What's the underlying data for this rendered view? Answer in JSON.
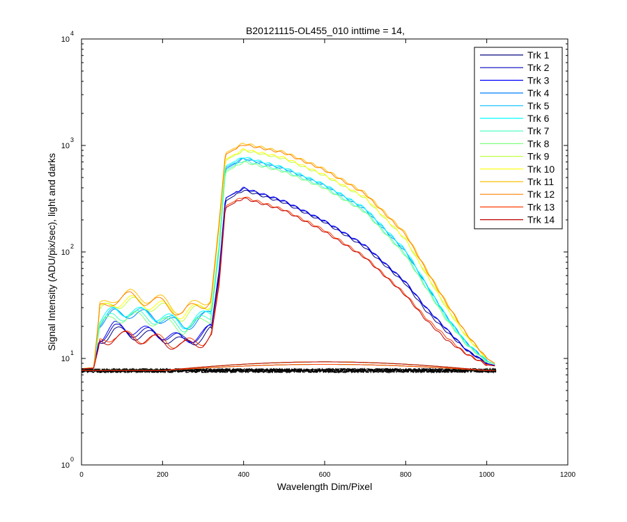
{
  "chart_data": {
    "type": "line",
    "title": "B20121115-OL455_010 inttime = 14,",
    "xlabel": "Wavelength Dim/Pixel",
    "ylabel": "Signal Intensity (ADU/pix/sec), light and darks",
    "xlim": [
      0,
      1200
    ],
    "ylim": [
      1,
      10000
    ],
    "yscale": "log",
    "xticks": [
      0,
      200,
      400,
      600,
      800,
      1000,
      1200
    ],
    "yticks": [
      {
        "value": 1,
        "base": "10",
        "exp": "0"
      },
      {
        "value": 10,
        "base": "10",
        "exp": "1"
      },
      {
        "value": 100,
        "base": "10",
        "exp": "2"
      },
      {
        "value": 1000,
        "base": "10",
        "exp": "3"
      },
      {
        "value": 10000,
        "base": "10",
        "exp": "4"
      }
    ],
    "grid": false,
    "legend_position": "top-right",
    "dark_level": 7.7,
    "series": [
      {
        "name": "Trk 1",
        "color": "#00007f",
        "points": [
          [
            0,
            8.0
          ],
          [
            30,
            8.1
          ],
          [
            45,
            15
          ],
          [
            80,
            18
          ],
          [
            120,
            17
          ],
          [
            200,
            16
          ],
          [
            250,
            14
          ],
          [
            300,
            16
          ],
          [
            320,
            18
          ],
          [
            340,
            60
          ],
          [
            355,
            300
          ],
          [
            400,
            380
          ],
          [
            500,
            290
          ],
          [
            600,
            190
          ],
          [
            700,
            110
          ],
          [
            800,
            50
          ],
          [
            850,
            28
          ],
          [
            900,
            18
          ],
          [
            950,
            12
          ],
          [
            1000,
            9
          ],
          [
            1020,
            8.6
          ]
        ]
      },
      {
        "name": "Trk 2",
        "color": "#0000bf",
        "points": [
          [
            0,
            8.0
          ],
          [
            30,
            8.1
          ],
          [
            45,
            16
          ],
          [
            80,
            19
          ],
          [
            120,
            18
          ],
          [
            200,
            17
          ],
          [
            250,
            15
          ],
          [
            300,
            17
          ],
          [
            320,
            19
          ],
          [
            340,
            65
          ],
          [
            355,
            320
          ],
          [
            400,
            395
          ],
          [
            500,
            300
          ],
          [
            600,
            195
          ],
          [
            700,
            115
          ],
          [
            800,
            52
          ],
          [
            850,
            30
          ],
          [
            900,
            19
          ],
          [
            950,
            12
          ],
          [
            1000,
            9
          ],
          [
            1020,
            8.6
          ]
        ]
      },
      {
        "name": "Trk 3",
        "color": "#0000ff",
        "points": [
          [
            0,
            8.0
          ],
          [
            30,
            8.1
          ],
          [
            45,
            16
          ],
          [
            80,
            20
          ],
          [
            120,
            19
          ],
          [
            200,
            17
          ],
          [
            250,
            15
          ],
          [
            300,
            17
          ],
          [
            320,
            19
          ],
          [
            340,
            70
          ],
          [
            355,
            320
          ],
          [
            400,
            400
          ],
          [
            500,
            300
          ],
          [
            600,
            195
          ],
          [
            700,
            115
          ],
          [
            800,
            52
          ],
          [
            850,
            30
          ],
          [
            900,
            19
          ],
          [
            950,
            12
          ],
          [
            1000,
            9
          ],
          [
            1020,
            8.6
          ]
        ]
      },
      {
        "name": "Trk 4",
        "color": "#007fff",
        "points": [
          [
            0,
            8.0
          ],
          [
            30,
            8.2
          ],
          [
            45,
            22
          ],
          [
            80,
            26
          ],
          [
            120,
            27
          ],
          [
            200,
            24
          ],
          [
            250,
            20
          ],
          [
            300,
            24
          ],
          [
            320,
            26
          ],
          [
            340,
            110
          ],
          [
            355,
            600
          ],
          [
            400,
            750
          ],
          [
            500,
            600
          ],
          [
            600,
            420
          ],
          [
            700,
            250
          ],
          [
            800,
            100
          ],
          [
            850,
            50
          ],
          [
            900,
            25
          ],
          [
            950,
            14
          ],
          [
            1000,
            9.5
          ],
          [
            1020,
            8.8
          ]
        ]
      },
      {
        "name": "Trk 5",
        "color": "#00bfff",
        "points": [
          [
            0,
            8.0
          ],
          [
            30,
            8.2
          ],
          [
            45,
            22
          ],
          [
            80,
            27
          ],
          [
            120,
            28
          ],
          [
            200,
            24
          ],
          [
            250,
            21
          ],
          [
            300,
            24
          ],
          [
            320,
            27
          ],
          [
            340,
            115
          ],
          [
            355,
            620
          ],
          [
            400,
            760
          ],
          [
            500,
            610
          ],
          [
            600,
            425
          ],
          [
            700,
            255
          ],
          [
            800,
            102
          ],
          [
            850,
            50
          ],
          [
            900,
            25
          ],
          [
            950,
            14
          ],
          [
            1000,
            9.5
          ],
          [
            1020,
            8.8
          ]
        ]
      },
      {
        "name": "Trk 6",
        "color": "#00ffff",
        "points": [
          [
            0,
            8.0
          ],
          [
            30,
            8.2
          ],
          [
            45,
            23
          ],
          [
            80,
            28
          ],
          [
            120,
            28
          ],
          [
            200,
            25
          ],
          [
            250,
            21
          ],
          [
            300,
            25
          ],
          [
            320,
            27
          ],
          [
            340,
            120
          ],
          [
            355,
            640
          ],
          [
            400,
            780
          ],
          [
            500,
            620
          ],
          [
            600,
            430
          ],
          [
            700,
            258
          ],
          [
            800,
            104
          ],
          [
            850,
            51
          ],
          [
            900,
            25
          ],
          [
            950,
            14
          ],
          [
            1000,
            9.5
          ],
          [
            1020,
            8.8
          ]
        ]
      },
      {
        "name": "Trk 7",
        "color": "#3fffbf",
        "points": [
          [
            0,
            8.0
          ],
          [
            30,
            8.2
          ],
          [
            45,
            21
          ],
          [
            80,
            25
          ],
          [
            120,
            26
          ],
          [
            200,
            23
          ],
          [
            250,
            20
          ],
          [
            300,
            23
          ],
          [
            320,
            25
          ],
          [
            340,
            105
          ],
          [
            355,
            580
          ],
          [
            400,
            720
          ],
          [
            500,
            580
          ],
          [
            600,
            405
          ],
          [
            700,
            242
          ],
          [
            800,
            95
          ],
          [
            850,
            47
          ],
          [
            900,
            24
          ],
          [
            950,
            13.5
          ],
          [
            1000,
            9.4
          ],
          [
            1020,
            8.8
          ]
        ]
      },
      {
        "name": "Trk 8",
        "color": "#7fff7f",
        "points": [
          [
            0,
            8.0
          ],
          [
            30,
            8.2
          ],
          [
            45,
            20
          ],
          [
            80,
            24
          ],
          [
            120,
            25
          ],
          [
            200,
            22
          ],
          [
            250,
            19
          ],
          [
            300,
            22
          ],
          [
            320,
            24
          ],
          [
            340,
            100
          ],
          [
            355,
            560
          ],
          [
            400,
            700
          ],
          [
            500,
            565
          ],
          [
            600,
            395
          ],
          [
            700,
            236
          ],
          [
            800,
            92
          ],
          [
            850,
            46
          ],
          [
            900,
            23
          ],
          [
            950,
            13.5
          ],
          [
            1000,
            9.3
          ],
          [
            1020,
            8.8
          ]
        ]
      },
      {
        "name": "Trk 9",
        "color": "#bfff3f",
        "points": [
          [
            0,
            8.0
          ],
          [
            30,
            8.2
          ],
          [
            45,
            27
          ],
          [
            80,
            33
          ],
          [
            120,
            34
          ],
          [
            200,
            30
          ],
          [
            250,
            25
          ],
          [
            300,
            30
          ],
          [
            320,
            33
          ],
          [
            340,
            170
          ],
          [
            355,
            720
          ],
          [
            400,
            900
          ],
          [
            500,
            750
          ],
          [
            600,
            520
          ],
          [
            700,
            320
          ],
          [
            800,
            130
          ],
          [
            850,
            62
          ],
          [
            900,
            30
          ],
          [
            950,
            16
          ],
          [
            1000,
            10
          ],
          [
            1020,
            9
          ]
        ]
      },
      {
        "name": "Trk 10",
        "color": "#ffff00",
        "points": [
          [
            0,
            8.0
          ],
          [
            30,
            8.2
          ],
          [
            45,
            28
          ],
          [
            80,
            34
          ],
          [
            120,
            35
          ],
          [
            200,
            31
          ],
          [
            250,
            26
          ],
          [
            300,
            31
          ],
          [
            320,
            34
          ],
          [
            340,
            180
          ],
          [
            355,
            740
          ],
          [
            400,
            920
          ],
          [
            500,
            770
          ],
          [
            600,
            530
          ],
          [
            700,
            325
          ],
          [
            800,
            132
          ],
          [
            850,
            63
          ],
          [
            900,
            31
          ],
          [
            950,
            16
          ],
          [
            1000,
            10
          ],
          [
            1020,
            9
          ]
        ]
      },
      {
        "name": "Trk 11",
        "color": "#ffbf00",
        "points": [
          [
            0,
            8.0
          ],
          [
            30,
            8.2
          ],
          [
            45,
            30
          ],
          [
            80,
            38
          ],
          [
            120,
            40
          ],
          [
            200,
            35
          ],
          [
            250,
            28
          ],
          [
            300,
            35
          ],
          [
            320,
            38
          ],
          [
            340,
            200
          ],
          [
            355,
            850
          ],
          [
            400,
            1050
          ],
          [
            500,
            870
          ],
          [
            600,
            600
          ],
          [
            700,
            360
          ],
          [
            800,
            150
          ],
          [
            850,
            70
          ],
          [
            900,
            34
          ],
          [
            950,
            17
          ],
          [
            1000,
            10
          ],
          [
            1020,
            9
          ]
        ]
      },
      {
        "name": "Trk 12",
        "color": "#ff7f00",
        "points": [
          [
            0,
            8.0
          ],
          [
            30,
            8.2
          ],
          [
            45,
            29
          ],
          [
            80,
            36
          ],
          [
            120,
            38
          ],
          [
            200,
            33
          ],
          [
            250,
            27
          ],
          [
            300,
            33
          ],
          [
            320,
            36
          ],
          [
            340,
            190
          ],
          [
            355,
            820
          ],
          [
            400,
            1020
          ],
          [
            500,
            850
          ],
          [
            600,
            585
          ],
          [
            700,
            350
          ],
          [
            800,
            145
          ],
          [
            850,
            68
          ],
          [
            900,
            33
          ],
          [
            950,
            17
          ],
          [
            1000,
            10
          ],
          [
            1020,
            9
          ]
        ]
      },
      {
        "name": "Trk 13",
        "color": "#ff3f00",
        "points": [
          [
            0,
            8.0
          ],
          [
            30,
            8.1
          ],
          [
            45,
            14
          ],
          [
            80,
            17
          ],
          [
            120,
            16
          ],
          [
            200,
            15
          ],
          [
            250,
            13.5
          ],
          [
            300,
            15
          ],
          [
            320,
            17
          ],
          [
            340,
            55
          ],
          [
            355,
            270
          ],
          [
            400,
            330
          ],
          [
            500,
            250
          ],
          [
            600,
            160
          ],
          [
            700,
            90
          ],
          [
            800,
            40
          ],
          [
            850,
            24
          ],
          [
            900,
            16
          ],
          [
            950,
            11
          ],
          [
            1000,
            8.8
          ],
          [
            1020,
            8.5
          ]
        ]
      },
      {
        "name": "Trk 14",
        "color": "#bf0000",
        "points": [
          [
            0,
            8.0
          ],
          [
            30,
            8.1
          ],
          [
            45,
            14
          ],
          [
            80,
            16
          ],
          [
            120,
            16
          ],
          [
            200,
            14.5
          ],
          [
            250,
            13
          ],
          [
            300,
            14.5
          ],
          [
            320,
            16
          ],
          [
            340,
            50
          ],
          [
            355,
            260
          ],
          [
            400,
            320
          ],
          [
            500,
            245
          ],
          [
            600,
            155
          ],
          [
            700,
            88
          ],
          [
            800,
            39
          ],
          [
            850,
            23
          ],
          [
            900,
            15
          ],
          [
            950,
            11
          ],
          [
            1000,
            8.7
          ],
          [
            1020,
            8.5
          ]
        ]
      }
    ]
  }
}
